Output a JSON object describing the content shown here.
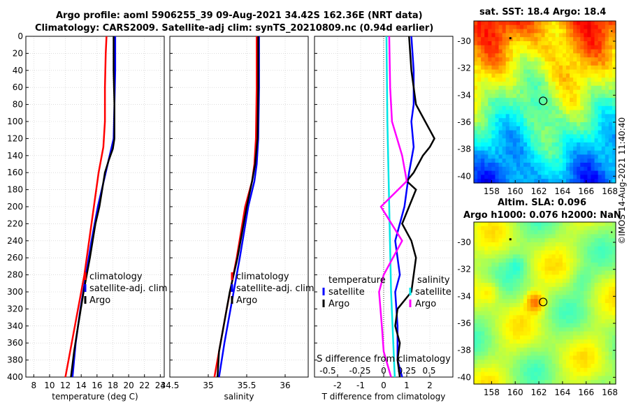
{
  "titles": {
    "line1": "Argo profile: aoml 5906255_39 09-Aug-2021 34.42S 162.36E (NRT data)",
    "line2": "Climatology: CARS2009. Satellite-adj clim: synTS_20210809.nc (0.94d earlier)",
    "sst_map": "sat. SST: 18.4 Argo: 18.4",
    "sla_map_line1": "Altim. SLA: 0.096",
    "sla_map_line2": "Argo h1000: 0.076 h2000: NaN"
  },
  "credit": "©IMOS 14-Aug-2021 11:40:40",
  "colors": {
    "red": "#ff0000",
    "blue": "#0000ff",
    "black": "#000000",
    "cyan": "#00e5e5",
    "magenta": "#ff00ff"
  },
  "chart_data": [
    {
      "type": "line",
      "id": "temperature",
      "xlabel": "temperature (deg C)",
      "ylabel": "",
      "xlim": [
        7,
        24.5
      ],
      "ylim": [
        400,
        0
      ],
      "xticks": [
        8,
        10,
        12,
        14,
        16,
        18,
        20,
        22,
        24
      ],
      "yticks": [
        0,
        20,
        40,
        60,
        80,
        100,
        120,
        140,
        160,
        180,
        200,
        220,
        240,
        260,
        280,
        300,
        320,
        340,
        360,
        380,
        400
      ],
      "grid": true,
      "legend": [
        "climatology",
        "satellite-adj. clim",
        "Argo"
      ],
      "series": [
        {
          "name": "climatology",
          "color": "red",
          "depth": [
            0,
            20,
            60,
            100,
            130,
            160,
            200,
            240,
            280,
            320,
            360,
            400
          ],
          "values": [
            17.2,
            17.1,
            17.0,
            17.0,
            16.8,
            16.2,
            15.6,
            15.0,
            14.4,
            13.6,
            12.8,
            12.0
          ]
        },
        {
          "name": "satellite-adj. clim",
          "color": "blue",
          "depth": [
            0,
            40,
            80,
            120,
            140,
            160,
            200,
            240,
            280,
            320,
            360,
            400
          ],
          "values": [
            18.3,
            18.3,
            18.2,
            18.1,
            17.6,
            17.1,
            16.1,
            15.3,
            14.6,
            13.9,
            13.3,
            12.9
          ]
        },
        {
          "name": "Argo",
          "color": "black",
          "depth": [
            0,
            40,
            80,
            120,
            132,
            145,
            160,
            200,
            220,
            260,
            300,
            340,
            370,
            400
          ],
          "values": [
            18.1,
            18.1,
            18.2,
            18.2,
            18.0,
            17.5,
            17.0,
            16.3,
            15.8,
            15.1,
            14.3,
            13.6,
            13.1,
            12.7
          ]
        }
      ]
    },
    {
      "type": "line",
      "id": "salinity",
      "xlabel": "salinity",
      "ylabel": "",
      "xlim": [
        34.5,
        36.3
      ],
      "ylim": [
        400,
        0
      ],
      "xticks": [
        34.5,
        35,
        35.5,
        36
      ],
      "yticks": [
        0,
        20,
        40,
        60,
        80,
        100,
        120,
        140,
        160,
        180,
        200,
        220,
        240,
        260,
        280,
        300,
        320,
        340,
        360,
        380,
        400
      ],
      "grid": true,
      "legend": [
        "climatology",
        "satellite-adj. clim",
        "Argo"
      ],
      "series": [
        {
          "name": "climatology",
          "color": "red",
          "depth": [
            0,
            60,
            120,
            150,
            170,
            200,
            260,
            320,
            360,
            400
          ],
          "values": [
            35.63,
            35.63,
            35.62,
            35.6,
            35.57,
            35.48,
            35.37,
            35.24,
            35.16,
            35.08
          ]
        },
        {
          "name": "satellite-adj. clim",
          "color": "blue",
          "depth": [
            0,
            60,
            120,
            150,
            170,
            200,
            260,
            320,
            360,
            400
          ],
          "values": [
            35.66,
            35.66,
            35.65,
            35.63,
            35.6,
            35.52,
            35.41,
            35.29,
            35.21,
            35.14
          ]
        },
        {
          "name": "Argo",
          "color": "black",
          "depth": [
            0,
            60,
            120,
            150,
            170,
            200,
            230,
            260,
            300,
            340,
            370,
            400
          ],
          "values": [
            35.65,
            35.65,
            35.64,
            35.61,
            35.57,
            35.5,
            35.44,
            35.38,
            35.28,
            35.2,
            35.14,
            35.12
          ]
        }
      ]
    },
    {
      "type": "line",
      "id": "difference",
      "xlabel": "T difference from climatology",
      "x2label": "S difference from climatology",
      "xlim": [
        -3,
        3
      ],
      "ylim": [
        400,
        0
      ],
      "xticks": [
        -2,
        -1,
        0,
        1,
        2
      ],
      "x2ticks": [
        "-0.5",
        "-0.25",
        "0",
        "0.25",
        "0.5"
      ],
      "yticks": [
        0,
        20,
        40,
        60,
        80,
        100,
        120,
        140,
        160,
        180,
        200,
        220,
        240,
        260,
        280,
        300,
        320,
        340,
        360,
        380,
        400
      ],
      "grid": true,
      "legend_temperature_header": "temperature",
      "legend_salinity_header": "salinity",
      "legend_temperature": [
        "satellite",
        "Argo"
      ],
      "legend_salinity": [
        "satellite",
        "Argo"
      ],
      "series": [
        {
          "name": "temperature satellite",
          "color": "blue",
          "depth": [
            0,
            40,
            80,
            100,
            130,
            160,
            200,
            240,
            260,
            280,
            300,
            340,
            380,
            400
          ],
          "values": [
            1.2,
            1.3,
            1.3,
            1.2,
            1.3,
            1.1,
            0.9,
            0.5,
            0.6,
            0.7,
            0.5,
            0.6,
            0.6,
            0.8
          ]
        },
        {
          "name": "temperature Argo",
          "color": "black",
          "depth": [
            0,
            40,
            80,
            100,
            110,
            120,
            130,
            140,
            150,
            160,
            170,
            180,
            200,
            220,
            240,
            260,
            280,
            300,
            320,
            340,
            360,
            380,
            400
          ],
          "values": [
            1.1,
            1.2,
            1.4,
            1.8,
            2.0,
            2.2,
            2.0,
            1.7,
            1.5,
            1.3,
            1.0,
            1.4,
            1.1,
            0.8,
            1.2,
            1.4,
            1.3,
            1.2,
            0.6,
            0.5,
            0.7,
            0.6,
            0.7
          ]
        },
        {
          "name": "salinity satellite",
          "color": "cyan",
          "depth": [
            0,
            100,
            200,
            300,
            400
          ],
          "values": [
            0.03,
            0.04,
            0.06,
            0.08,
            0.12
          ]
        },
        {
          "name": "salinity Argo",
          "color": "magenta",
          "depth": [
            0,
            60,
            100,
            140,
            170,
            200,
            240,
            280,
            300,
            340,
            370,
            400
          ],
          "values": [
            0.06,
            0.07,
            0.09,
            0.2,
            0.25,
            -0.03,
            0.2,
            0.0,
            -0.05,
            -0.02,
            0.0,
            0.08
          ]
        }
      ]
    },
    {
      "type": "heatmap",
      "id": "sst_map",
      "title": "sat. SST: 18.4 Argo: 18.4",
      "xlim": [
        156.5,
        168.5
      ],
      "ylim": [
        -40.5,
        -28.5
      ],
      "xticks": [
        158,
        160,
        162,
        164,
        166,
        168
      ],
      "yticks": [
        -30,
        -32,
        -34,
        -36,
        -38,
        -40
      ],
      "argo_marker": {
        "lon": 162.36,
        "lat": -34.42
      }
    },
    {
      "type": "heatmap",
      "id": "sla_map",
      "title": "Altim. SLA: 0.096",
      "xlim": [
        156.5,
        168.5
      ],
      "ylim": [
        -40.5,
        -28.5
      ],
      "xticks": [
        158,
        160,
        162,
        164,
        166,
        168
      ],
      "yticks": [
        -30,
        -32,
        -34,
        -36,
        -38,
        -40
      ],
      "argo_marker": {
        "lon": 162.36,
        "lat": -34.42
      }
    }
  ]
}
